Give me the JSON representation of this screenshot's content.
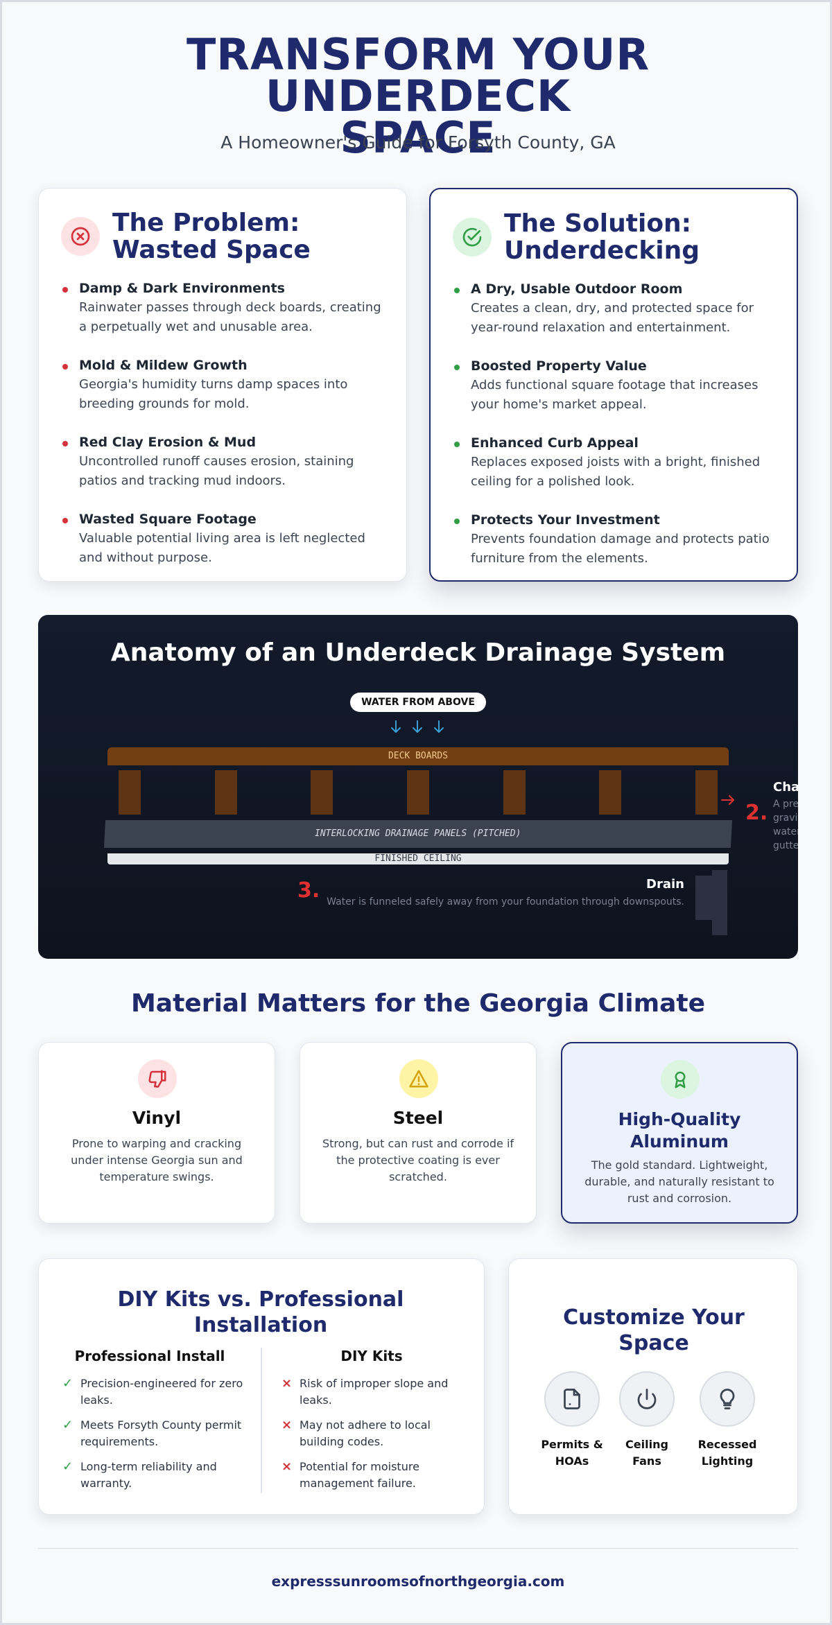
{
  "hero": {
    "title_line1": "TRANSFORM YOUR UNDERDECK",
    "title_line2": "SPACE",
    "subtitle": "A Homeowner's Guide for Forsyth County, GA"
  },
  "problem": {
    "title_line1": "The Problem:",
    "title_line2": "Wasted Space",
    "icon": "x-circle-icon",
    "color": "#d6313b",
    "items": [
      {
        "title": "Damp & Dark Environments",
        "text": "Rainwater passes through deck boards, creating a perpetually wet and unusable area."
      },
      {
        "title": "Mold & Mildew Growth",
        "text": "Georgia's humidity turns damp spaces into breeding grounds for mold."
      },
      {
        "title": "Red Clay Erosion & Mud",
        "text": "Uncontrolled runoff causes erosion, staining patios and tracking mud indoors."
      },
      {
        "title": "Wasted Square Footage",
        "text": "Valuable potential living area is left neglected and without purpose."
      }
    ]
  },
  "solution": {
    "title_line1": "The Solution:",
    "title_line2": "Underdecking",
    "icon": "check-circle-icon",
    "color": "#2f9e44",
    "items": [
      {
        "title": "A Dry, Usable Outdoor Room",
        "text": "Creates a clean, dry, and protected space for year-round relaxation and entertainment."
      },
      {
        "title": "Boosted Property Value",
        "text": "Adds functional square footage that increases your home's market appeal."
      },
      {
        "title": "Enhanced Curb Appeal",
        "text": "Replaces exposed joists with a bright, finished ceiling for a polished look."
      },
      {
        "title": "Protects Your Investment",
        "text": "Prevents foundation damage and protects patio furniture from the elements."
      }
    ]
  },
  "anatomy": {
    "title": "Anatomy of an Underdeck Drainage System",
    "water_label": "WATER FROM ABOVE",
    "deck_label": "DECK BOARDS",
    "panels_label": "INTERLOCKING DRAINAGE PANELS (PITCHED)",
    "ceiling_label": "FINISHED CEILING",
    "callout2": {
      "num": "2.",
      "title": "Channel",
      "lines": [
        "A precise slo",
        "gravity to gu",
        "water into a",
        "gutter syster"
      ]
    },
    "callout3": {
      "num": "3.",
      "title": "Drain",
      "text": "Water is funneled safely away from your foundation through downspouts."
    }
  },
  "materials": {
    "heading": "Material Matters for the Georgia Climate",
    "cards": [
      {
        "title": "Vinyl",
        "text": "Prone to warping and cracking under intense Georgia sun and temperature swings.",
        "icon": "thumbs-down-icon"
      },
      {
        "title": "Steel",
        "text": "Strong, but can rust and corrode if the protective coating is ever scratched.",
        "icon": "warning-icon"
      },
      {
        "title_line1": "High-Quality",
        "title_line2": "Aluminum",
        "text": "The gold standard. Lightweight, durable, and naturally resistant to rust and corrosion.",
        "icon": "award-icon"
      }
    ]
  },
  "diy": {
    "title_line1": "DIY Kits vs. Professional",
    "title_line2": "Installation",
    "pro_heading": "Professional Install",
    "diy_heading": "DIY Kits",
    "pro_items": [
      "Precision-engineered for zero leaks.",
      "Meets Forsyth County permit requirements.",
      "Long-term reliability and warranty."
    ],
    "diy_items": [
      "Risk of improper slope and leaks.",
      "May not adhere to local building codes.",
      "Potential for moisture management failure."
    ]
  },
  "customize": {
    "title_line1": "Customize Your",
    "title_line2": "Space",
    "items": [
      {
        "line1": "Permits &",
        "line2": "HOAs",
        "icon": "document-icon"
      },
      {
        "line1": "Ceiling",
        "line2": "Fans",
        "icon": "power-icon"
      },
      {
        "line1": "Recessed",
        "line2": "Lighting",
        "icon": "lightbulb-icon"
      }
    ]
  },
  "footer": {
    "url": "expresssunroomsofnorthgeorgia.com"
  }
}
